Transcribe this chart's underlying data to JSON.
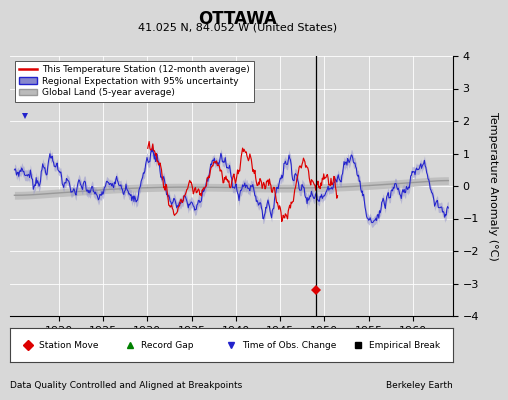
{
  "title": "OTTAWA",
  "subtitle": "41.025 N, 84.052 W (United States)",
  "xlabel_left": "Data Quality Controlled and Aligned at Breakpoints",
  "xlabel_right": "Berkeley Earth",
  "ylabel": "Temperature Anomaly (°C)",
  "xlim": [
    1914.5,
    1964.5
  ],
  "ylim": [
    -4,
    4
  ],
  "yticks": [
    -4,
    -3,
    -2,
    -1,
    0,
    1,
    2,
    3,
    4
  ],
  "xticks": [
    1920,
    1925,
    1930,
    1935,
    1940,
    1945,
    1950,
    1955,
    1960
  ],
  "bg_color": "#d8d8d8",
  "plot_bg_color": "#d8d8d8",
  "red_line_color": "#dd0000",
  "blue_line_color": "#2222cc",
  "blue_fill_color": "#8888cc",
  "gray_line_color": "#999999",
  "gray_fill_color": "#bbbbbb",
  "vertical_line_x": 1949.0,
  "station_move_x": 1949.0,
  "station_move_y": -3.2,
  "obs_change_x": 1916.2,
  "obs_change_y": 2.15,
  "seed": 7
}
